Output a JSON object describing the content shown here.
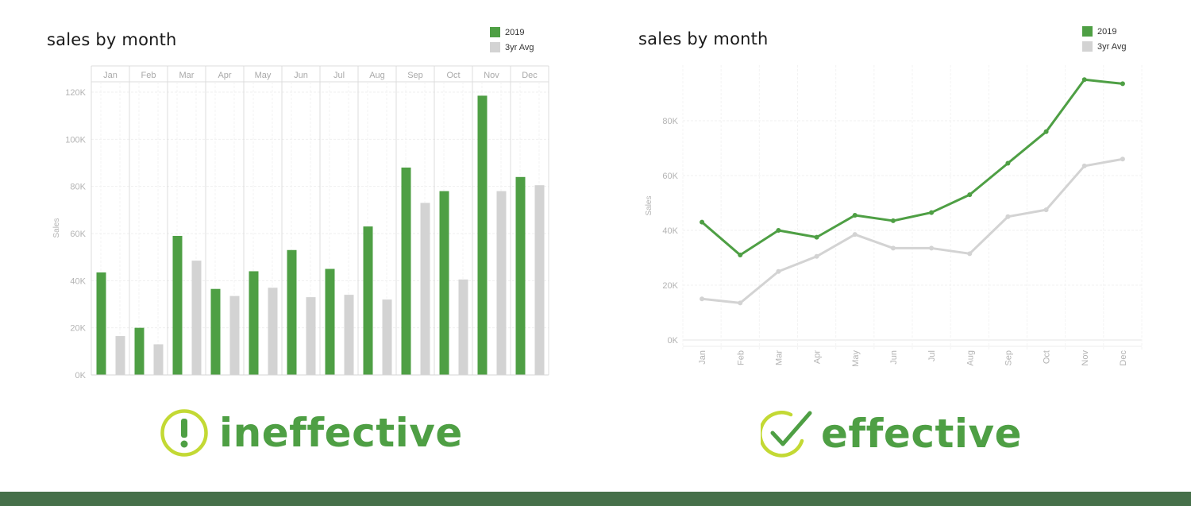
{
  "colors": {
    "series_2019": "#4e9f44",
    "series_avg": "#d3d3d3",
    "verdict_text": "#4e9f44",
    "icon_ring": "#c3d934",
    "footer": "#46704a",
    "axis_text": "#b0b0b0",
    "gridline": "#eeeeee"
  },
  "left": {
    "title": "sales by month",
    "legend": [
      {
        "label": "2019",
        "color": "#4e9f44"
      },
      {
        "label": "3yr Avg",
        "color": "#d3d3d3"
      }
    ],
    "ylabel": "Sales",
    "yticks": [
      "0K",
      "20K",
      "40K",
      "60K",
      "80K",
      "100K",
      "120K"
    ],
    "months": [
      "Jan",
      "Feb",
      "Mar",
      "Apr",
      "May",
      "Jun",
      "Jul",
      "Aug",
      "Sep",
      "Oct",
      "Nov",
      "Dec"
    ],
    "verdict": {
      "label": "ineffective",
      "icon": "exclamation-circle-icon"
    }
  },
  "right": {
    "title": "sales by month",
    "legend": [
      {
        "label": "2019",
        "color": "#4e9f44"
      },
      {
        "label": "3yr Avg",
        "color": "#d3d3d3"
      }
    ],
    "ylabel": "Sales",
    "yticks": [
      "0K",
      "20K",
      "40K",
      "60K",
      "80K"
    ],
    "months": [
      "Jan",
      "Feb",
      "Mar",
      "Apr",
      "May",
      "Jun",
      "Jul",
      "Aug",
      "Sep",
      "Oct",
      "Nov",
      "Dec"
    ],
    "verdict": {
      "label": "effective",
      "icon": "checkmark-circle-icon"
    }
  },
  "chart_data": [
    {
      "type": "bar",
      "title": "sales by month",
      "xlabel": "",
      "ylabel": "Sales",
      "ylim": [
        0,
        125000
      ],
      "grid": true,
      "legend_position": "top-right",
      "categories": [
        "Jan",
        "Feb",
        "Mar",
        "Apr",
        "May",
        "Jun",
        "Jul",
        "Aug",
        "Sep",
        "Oct",
        "Nov",
        "Dec"
      ],
      "series": [
        {
          "name": "2019",
          "values": [
            43500,
            20000,
            59000,
            36500,
            44000,
            53000,
            45000,
            63000,
            88000,
            78000,
            118500,
            84000
          ]
        },
        {
          "name": "3yr Avg",
          "values": [
            16500,
            13000,
            48500,
            33500,
            37000,
            33000,
            34000,
            32000,
            73000,
            40500,
            78000,
            80500
          ]
        }
      ],
      "yticks": [
        0,
        20000,
        40000,
        60000,
        80000,
        100000,
        120000
      ],
      "annotation": "ineffective"
    },
    {
      "type": "line",
      "title": "sales by month",
      "xlabel": "",
      "ylabel": "Sales",
      "ylim": [
        0,
        100000
      ],
      "grid": true,
      "legend_position": "top-right",
      "categories": [
        "Jan",
        "Feb",
        "Mar",
        "Apr",
        "May",
        "Jun",
        "Jul",
        "Aug",
        "Sep",
        "Oct",
        "Nov",
        "Dec"
      ],
      "series": [
        {
          "name": "2019",
          "values": [
            43000,
            31000,
            40000,
            37500,
            45500,
            43500,
            46500,
            53000,
            64500,
            76000,
            95000,
            93500
          ]
        },
        {
          "name": "3yr Avg",
          "values": [
            15000,
            13500,
            25000,
            30500,
            38500,
            33500,
            33500,
            31500,
            45000,
            47500,
            63500,
            66000
          ]
        }
      ],
      "yticks": [
        0,
        20000,
        40000,
        60000,
        80000
      ],
      "annotation": "effective"
    }
  ]
}
